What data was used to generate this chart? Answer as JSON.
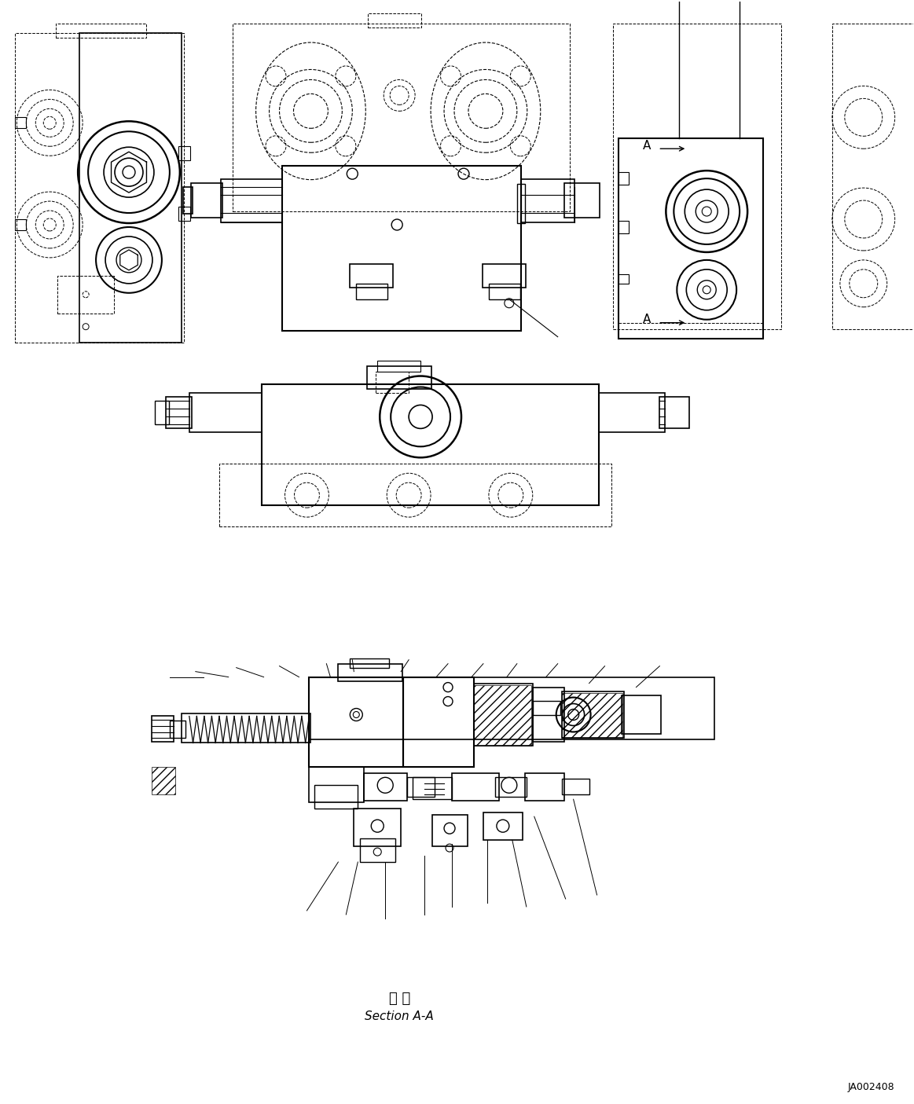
{
  "bg_color": "#ffffff",
  "line_color": "#000000",
  "title_text1": "断 面",
  "title_text2": "Section A-A",
  "ref_code": "JA002408",
  "fig_width": 11.63,
  "fig_height": 14.05,
  "dpi": 100
}
